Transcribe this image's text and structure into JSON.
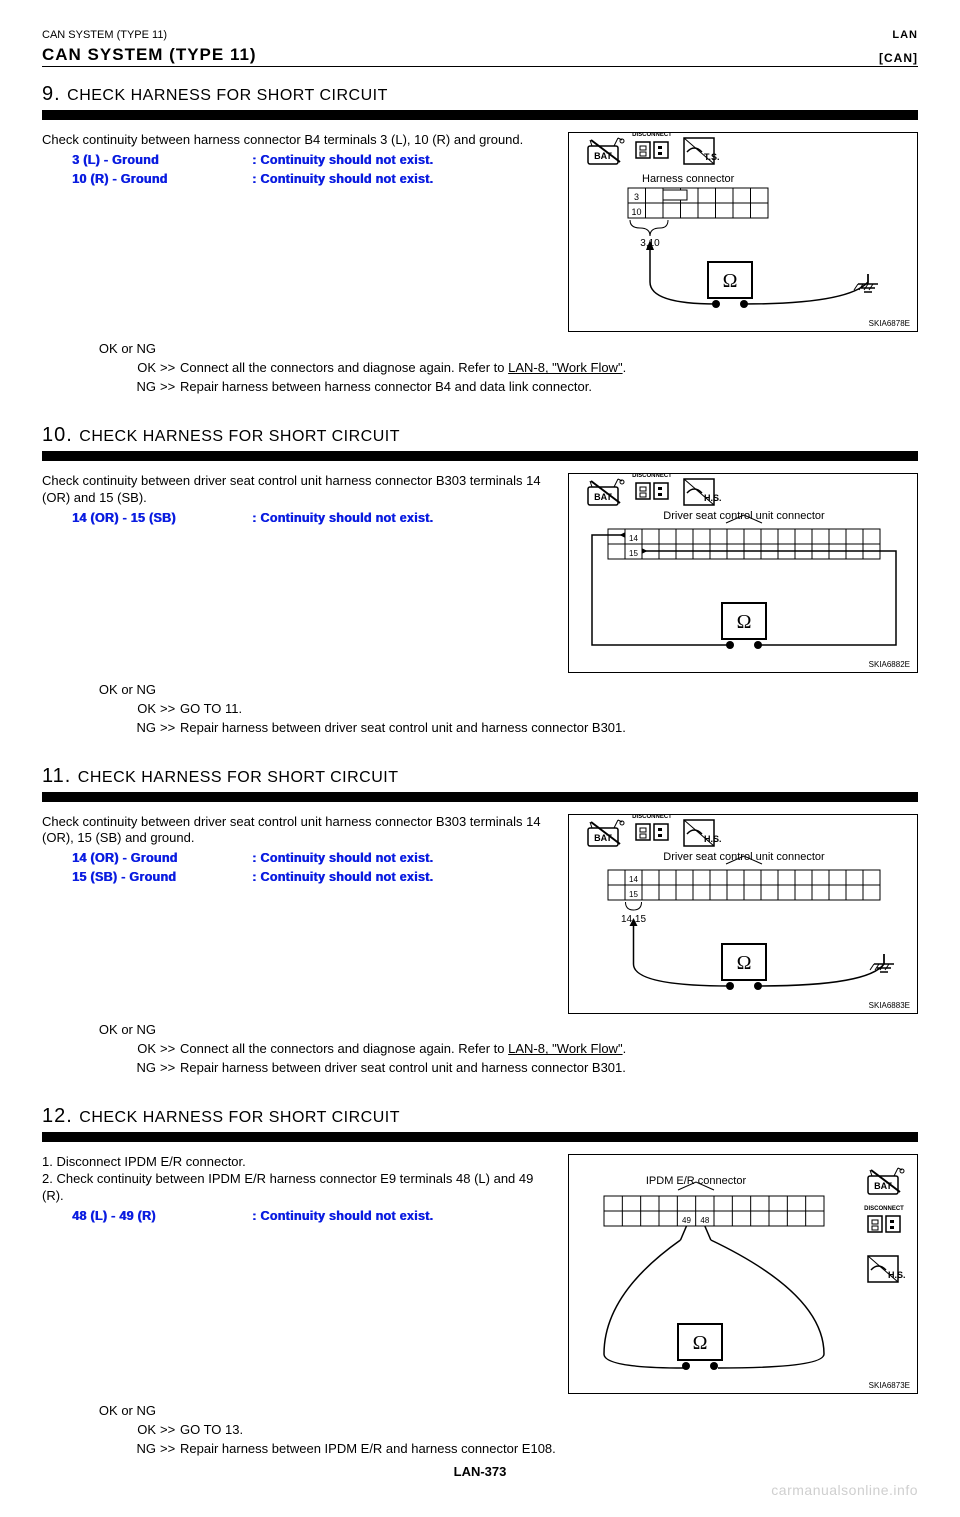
{
  "header": {
    "left": "CAN SYSTEM (TYPE 11)",
    "right": "LAN",
    "section": "[CAN]"
  },
  "steps": [
    {
      "id": "9",
      "title": "CHECK HARNESS FOR SHORT CIRCUIT",
      "intro": "Check continuity between harness connector B4 terminals 3 (L), 10 (R) and ground.",
      "checks": [
        {
          "l": "3 (L) - Ground",
          "r": ": Continuity should not exist."
        },
        {
          "l": "10 (R) - Ground",
          "r": ": Continuity should not exist."
        }
      ],
      "okng": [
        {
          "l": "OK or NG",
          "m": "",
          "r": ""
        },
        {
          "l": "OK",
          "m": ">>",
          "r": "Connect all the connectors and diagnose again. Refer to <u>LAN-8, \"Work Flow\"</u>."
        },
        {
          "l": "NG",
          "m": ">>",
          "r": "Repair harness between harness connector B4 and data link connector."
        }
      ],
      "diagram": "harness_310"
    },
    {
      "id": "10",
      "title": "CHECK HARNESS FOR SHORT CIRCUIT",
      "intro": "Check continuity between driver seat control unit harness connector B303 terminals 14 (OR) and 15 (SB).",
      "checks": [
        {
          "l": "14 (OR) - 15 (SB)",
          "r": ": Continuity should not exist."
        }
      ],
      "okng": [
        {
          "l": "OK or NG",
          "m": "",
          "r": ""
        },
        {
          "l": "OK",
          "m": ">>",
          "r": "GO TO 11."
        },
        {
          "l": "NG",
          "m": ">>",
          "r": "Repair harness between driver seat control unit and harness connector B301."
        }
      ],
      "diagram": "seat_loop"
    },
    {
      "id": "11",
      "title": "CHECK HARNESS FOR SHORT CIRCUIT",
      "intro": "Check continuity between driver seat control unit harness connector B303 terminals 14 (OR), 15 (SB) and ground.",
      "checks": [
        {
          "l": "14 (OR) - Ground",
          "r": ": Continuity should not exist."
        },
        {
          "l": "15 (SB) - Ground",
          "r": ": Continuity should not exist."
        }
      ],
      "okng": [
        {
          "l": "OK or NG",
          "m": "",
          "r": ""
        },
        {
          "l": "OK",
          "m": ">>",
          "r": "Connect all the connectors and diagnose again. Refer to <u>LAN-8, \"Work Flow\"</u>."
        },
        {
          "l": "NG",
          "m": ">>",
          "r": "Repair harness between driver seat control unit and harness connector B301."
        }
      ],
      "diagram": "seat_ground"
    },
    {
      "id": "12",
      "title": "CHECK HARNESS FOR SHORT CIRCUIT",
      "intro_pre": "1. Disconnect IPDM E/R connector.\n2. Check continuity between IPDM E/R harness connector E9 terminals 48 (L) and 49 (R).",
      "checks": [
        {
          "l": "48 (L) - 49 (R)",
          "r": ": Continuity should not exist."
        }
      ],
      "okng": [
        {
          "l": "OK or NG",
          "m": "",
          "r": ""
        },
        {
          "l": "OK",
          "m": ">>",
          "r": "GO TO 13."
        },
        {
          "l": "NG",
          "m": ">>",
          "r": "Repair harness between IPDM E/R and harness connector E108."
        }
      ],
      "diagram": "ipdm"
    }
  ],
  "diagrams": {
    "harness_310": {
      "label": "Harness connector",
      "pins": [
        "3",
        "10"
      ],
      "brace": "3,10",
      "ref": "SKIA6878E",
      "icons": [
        "bat",
        "disc",
        "ts"
      ],
      "ground": true
    },
    "seat_loop": {
      "label": "Driver seat control unit connector",
      "pins": [
        "14",
        "15"
      ],
      "brace": "",
      "ref": "SKIA6882E",
      "icons": [
        "bat",
        "disc",
        "hs_sq"
      ],
      "ground": false
    },
    "seat_ground": {
      "label": "Driver seat control unit connector",
      "pins": [
        "14",
        "15"
      ],
      "brace": "14,15",
      "ref": "SKIA6883E",
      "icons": [
        "bat",
        "disc",
        "hs_sq"
      ],
      "ground": true
    },
    "ipdm": {
      "label": "IPDM E/R connector",
      "pins": [
        "49",
        "48"
      ],
      "brace": "",
      "ref": "SKIA6873E",
      "icons_side": [
        "bat",
        "disc",
        "hs_sq"
      ],
      "ground": false
    }
  },
  "footer": {
    "page": "LAN-373",
    "wm": "carmanualsonline.info"
  }
}
